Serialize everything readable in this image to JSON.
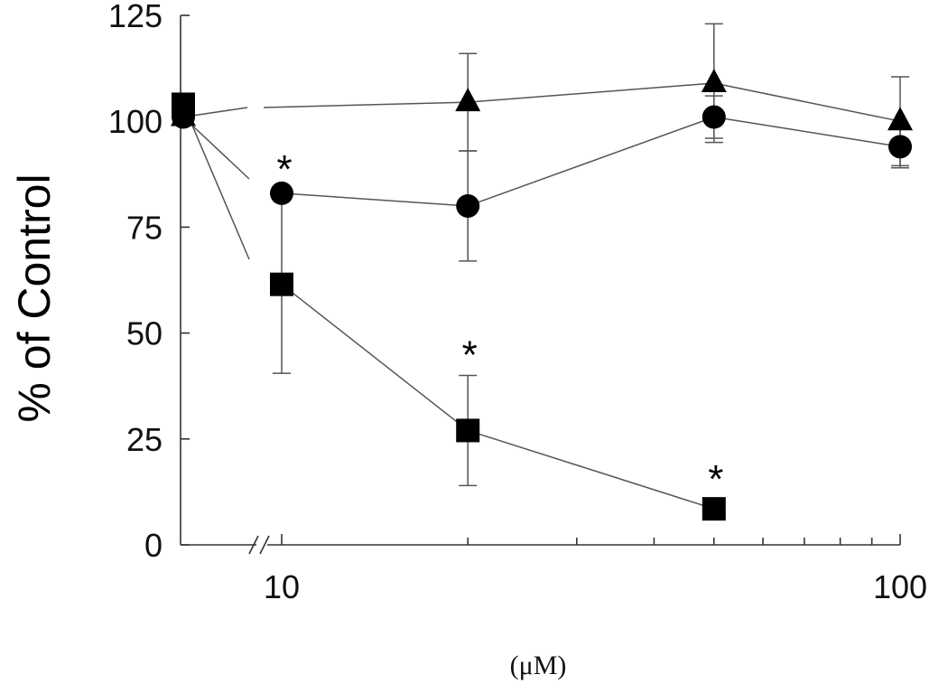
{
  "chart_data": {
    "type": "line",
    "title": "",
    "xlabel": "(μM)",
    "ylabel": "% of Control",
    "xscale": "log",
    "xlim": [
      10,
      100
    ],
    "ylim": [
      0,
      125
    ],
    "yticks": [
      "0",
      "25",
      "50",
      "75",
      "100",
      "125"
    ],
    "xticks": [
      "10",
      "100"
    ],
    "control_label": "",
    "series": [
      {
        "marker": "triangle",
        "points": [
          {
            "x": "control",
            "y": 101
          },
          {
            "x": 10,
            "y": 104
          },
          {
            "x": 20,
            "y": 104.5,
            "err": 11.5
          },
          {
            "x": 50,
            "y": 109,
            "err": 14
          },
          {
            "x": 100,
            "y": 100,
            "err": 10.5
          }
        ]
      },
      {
        "marker": "circle",
        "points": [
          {
            "x": "control",
            "y": 101
          },
          {
            "x": 10,
            "y": 83,
            "star": true
          },
          {
            "x": 20,
            "y": 80,
            "err": 13
          },
          {
            "x": 50,
            "y": 101,
            "err": 5
          },
          {
            "x": 100,
            "y": 94,
            "err": 5
          }
        ]
      },
      {
        "marker": "square",
        "points": [
          {
            "x": "control",
            "y": 104
          },
          {
            "x": 10,
            "y": 61.5,
            "err": 21,
            "connect_from_control": false
          },
          {
            "x": 20,
            "y": 27,
            "err": 13,
            "star": true
          },
          {
            "x": 50,
            "y": 8.5,
            "star": true
          }
        ]
      }
    ],
    "annotations": [
      "*",
      "*",
      "*"
    ],
    "grid": false,
    "legend": "none"
  }
}
